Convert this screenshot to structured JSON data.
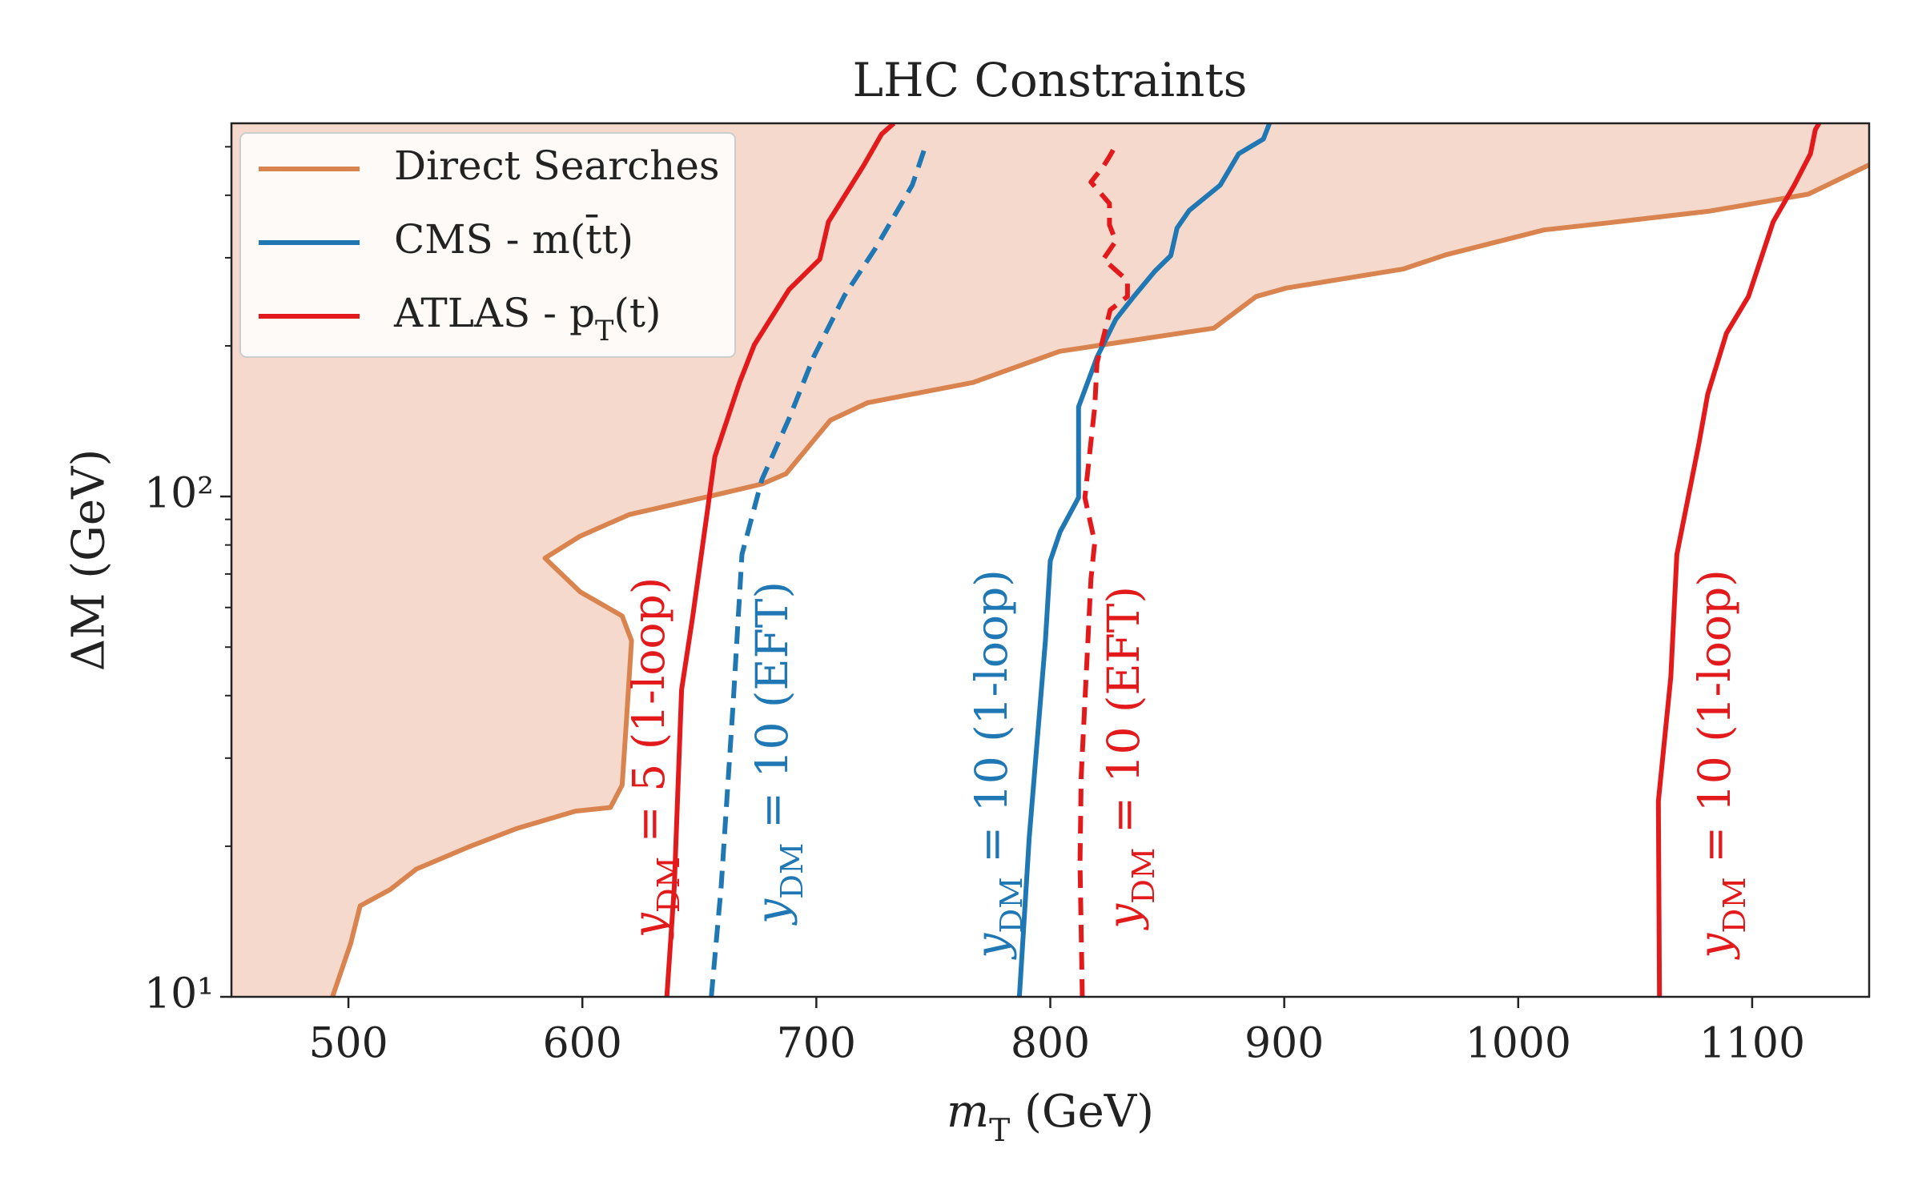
{
  "chart_data": {
    "type": "line",
    "title": "LHC Constraints",
    "xlabel": [
      {
        "text": "m"
      },
      {
        "sub": "T"
      },
      {
        "text": " (GeV)"
      }
    ],
    "ylabel": "ΔM (GeV)",
    "xlim": [
      450,
      1150
    ],
    "ylim": [
      10,
      557
    ],
    "ylog": true,
    "xticks": [
      500,
      600,
      700,
      800,
      900,
      1000,
      1100
    ],
    "yticks": [
      {
        "value": 10,
        "label": "10¹"
      },
      {
        "value": 100,
        "label": "10²"
      }
    ],
    "yminor_ticks": [
      20,
      30,
      40,
      50,
      60,
      70,
      80,
      90,
      200,
      300,
      400,
      500
    ],
    "legend": "upper left",
    "series": [
      {
        "name": [
          {
            "text": "Direct Searches"
          }
        ],
        "color": "#d9834f",
        "fill_color": "#f5d9cc",
        "fill": "above",
        "dashed": false,
        "x": [
          493.2,
          501,
          505,
          518,
          529,
          551,
          572,
          597,
          612,
          617,
          619,
          621,
          617,
          599,
          584,
          599,
          620,
          654,
          677,
          687,
          698,
          706,
          722,
          767,
          804,
          870,
          888,
          901,
          951,
          969,
          1011,
          1040,
          1082,
          1124,
          1150
        ],
        "y": [
          10,
          12.8,
          15.2,
          16.4,
          18.0,
          19.9,
          21.7,
          23.5,
          23.9,
          26.5,
          36.6,
          51.5,
          57.7,
          64.5,
          75.3,
          83.3,
          92,
          100,
          106,
          111,
          128,
          142,
          154,
          169,
          195,
          217,
          251,
          261,
          285,
          304,
          341,
          353,
          372,
          402,
          460
        ]
      },
      {
        "name": [
          {
            "text": "CMS - m(t̄t)"
          }
        ],
        "color": "#1f77b4",
        "dashed": false,
        "x": [
          786.8,
          791,
          797.9,
          800,
          804.2,
          812.1,
          812.1,
          820,
          828,
          835.7,
          844.7,
          851.5,
          854.2,
          859.4,
          872.6,
          880.5,
          891.1,
          893.7
        ],
        "y": [
          10,
          20.8,
          51.5,
          74.4,
          85,
          99.5,
          151,
          190,
          226,
          251,
          282,
          303,
          344,
          373,
          419,
          484,
          518,
          557
        ]
      },
      {
        "name": [
          {
            "text": "ATLAS - p"
          },
          {
            "sub": "T"
          },
          {
            "text": "(t)"
          }
        ],
        "color": "#e31a1c",
        "dashed": false,
        "x": [
          636.1,
          639.3,
          642.4,
          647.2,
          653,
          656.6,
          667.2,
          673.5,
          688.3,
          701.5,
          705.2,
          720,
          727.9,
          733.1
        ],
        "y": [
          10,
          16.6,
          41.1,
          57.7,
          90.3,
          120,
          169,
          201,
          259,
          298,
          354,
          457,
          530,
          557
        ]
      },
      {
        "color": "#1f77b4",
        "dashed": true,
        "x": [
          655.1,
          659.3,
          664.5,
          668.2,
          676.7,
          688.3,
          698.8,
          712,
          725.2,
          741,
          747.3
        ],
        "y": [
          10,
          16.6,
          38.8,
          76.6,
          108,
          143,
          190,
          252,
          313,
          419,
          512
        ]
      },
      {
        "color": "#e31a1c",
        "dashed": true,
        "x": [
          813.7,
          812.7,
          813.2,
          817.4,
          819,
          814.8,
          819,
          820,
          825.6,
          833,
          833,
          822.7,
          828,
          825.3,
          825.3,
          817.4,
          822.7,
          825.3,
          828
        ],
        "y": [
          10,
          18.5,
          27.6,
          68.5,
          81,
          99.5,
          151,
          185,
          236,
          251,
          270,
          298,
          324,
          349,
          385,
          425,
          457,
          478,
          503
        ]
      },
      {
        "color": "#e31a1c",
        "dashed": false,
        "x": [
          1060.4,
          1059.9,
          1065.2,
          1067.8,
          1077.3,
          1081,
          1089,
          1098.4,
          1109,
          1118,
          1124.9,
          1127,
          1128.6
        ],
        "y": [
          10,
          24.6,
          43.5,
          76.6,
          128,
          160,
          212,
          251,
          354,
          419,
          484,
          541,
          557
        ]
      }
    ],
    "annotations": [
      {
        "color": "#e31a1c",
        "parts": [
          {
            "text": "y"
          },
          {
            "sub": "DM"
          },
          {
            "text": " = 5 (1-loop)"
          }
        ]
      },
      {
        "color": "#1f77b4",
        "parts": [
          {
            "text": "y"
          },
          {
            "sub": "DM"
          },
          {
            "text": " = 10 (EFT)"
          }
        ]
      },
      {
        "color": "#1f77b4",
        "parts": [
          {
            "text": "y"
          },
          {
            "sub": "DM"
          },
          {
            "text": " = 10 (1-loop)"
          }
        ]
      },
      {
        "color": "#e31a1c",
        "parts": [
          {
            "text": "y"
          },
          {
            "sub": "DM"
          },
          {
            "text": " = 10 (EFT)"
          }
        ]
      },
      {
        "color": "#e31a1c",
        "parts": [
          {
            "text": "y"
          },
          {
            "sub": "DM"
          },
          {
            "text": " = 10 (1-loop)"
          }
        ]
      }
    ]
  }
}
